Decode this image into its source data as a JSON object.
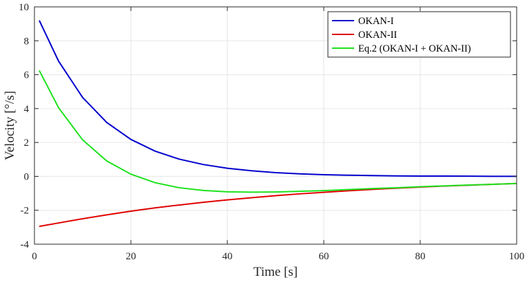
{
  "chart_data": {
    "type": "line",
    "title": "",
    "xlabel": "Time [s]",
    "ylabel": "Velocity [°/s]",
    "xlim": [
      0,
      100
    ],
    "ylim": [
      -4,
      10
    ],
    "xticks": [
      0,
      20,
      40,
      60,
      80,
      100
    ],
    "yticks": [
      -4,
      -2,
      0,
      2,
      4,
      6,
      8,
      10
    ],
    "grid": true,
    "legend_position": "top-right",
    "series": [
      {
        "name": "OKAN-I",
        "color": "#0000cc",
        "x": [
          1,
          5,
          10,
          15,
          20,
          25,
          30,
          35,
          40,
          45,
          50,
          55,
          60,
          65,
          70,
          75,
          80,
          85,
          90,
          95,
          100
        ],
        "y": [
          9.2,
          6.8,
          4.65,
          3.18,
          2.18,
          1.49,
          1.02,
          0.7,
          0.48,
          0.33,
          0.22,
          0.15,
          0.1,
          0.07,
          0.05,
          0.03,
          0.02,
          0.015,
          0.01,
          0.0,
          0.0
        ]
      },
      {
        "name": "OKAN-II",
        "color": "#e00000",
        "x": [
          1,
          5,
          10,
          15,
          20,
          25,
          30,
          35,
          40,
          45,
          50,
          55,
          60,
          65,
          70,
          75,
          80,
          85,
          90,
          95,
          100
        ],
        "y": [
          -2.95,
          -2.75,
          -2.5,
          -2.27,
          -2.05,
          -1.86,
          -1.69,
          -1.53,
          -1.39,
          -1.26,
          -1.14,
          -1.03,
          -0.94,
          -0.85,
          -0.77,
          -0.7,
          -0.63,
          -0.57,
          -0.52,
          -0.47,
          -0.42
        ]
      },
      {
        "name": "Eq.2 (OKAN-I + OKAN-II)",
        "color": "#1de21d",
        "x": [
          1,
          5,
          10,
          15,
          20,
          25,
          30,
          35,
          40,
          45,
          50,
          55,
          60,
          65,
          70,
          75,
          80,
          85,
          90,
          95,
          100
        ],
        "y": [
          6.25,
          4.05,
          2.15,
          0.91,
          0.13,
          -0.37,
          -0.67,
          -0.83,
          -0.91,
          -0.93,
          -0.92,
          -0.88,
          -0.84,
          -0.78,
          -0.72,
          -0.67,
          -0.61,
          -0.56,
          -0.51,
          -0.47,
          -0.42
        ]
      }
    ]
  }
}
